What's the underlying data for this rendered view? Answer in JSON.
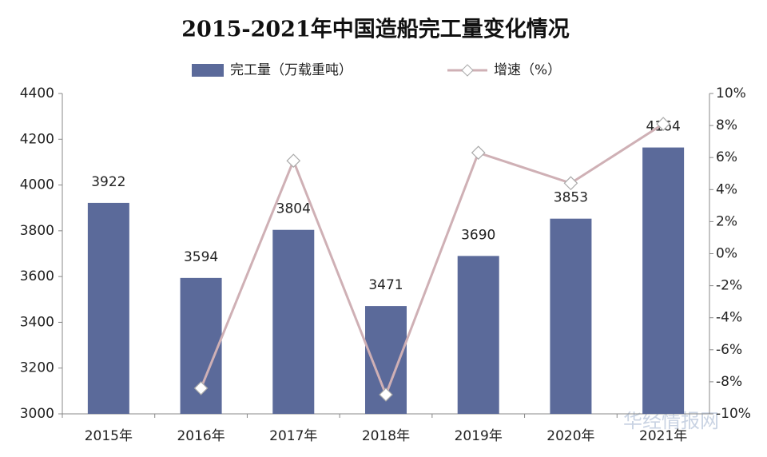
{
  "chart_data": {
    "type": "combo",
    "title": "2015-2021年中国造船完工量变化情况",
    "categories": [
      "2015年",
      "2016年",
      "2017年",
      "2018年",
      "2019年",
      "2020年",
      "2021年"
    ],
    "series": [
      {
        "name": "完工量（万载重吨）",
        "type": "bar",
        "color": "#5b6a9a",
        "values": [
          3922,
          3594,
          3804,
          3471,
          3690,
          3853,
          4164
        ]
      },
      {
        "name": "增速（%）",
        "type": "line",
        "axis": "y2",
        "color": "#cfb0b5",
        "values": [
          null,
          -8.4,
          5.8,
          -8.8,
          6.3,
          4.4,
          8.1
        ]
      }
    ],
    "ylim": [
      3000,
      4400
    ],
    "yticks": [
      3000,
      3200,
      3400,
      3600,
      3800,
      4000,
      4200,
      4400
    ],
    "y2lim": [
      -10,
      10
    ],
    "y2ticks": [
      {
        "value": -10,
        "label": "-10%"
      },
      {
        "value": -8,
        "label": "-8%"
      },
      {
        "value": -6,
        "label": "-6%"
      },
      {
        "value": -4,
        "label": "-4%"
      },
      {
        "value": -2,
        "label": "-2%"
      },
      {
        "value": 0,
        "label": "0%"
      },
      {
        "value": 2,
        "label": "2%"
      },
      {
        "value": 4,
        "label": "4%"
      },
      {
        "value": 6,
        "label": "6%"
      },
      {
        "value": 8,
        "label": "8%"
      },
      {
        "value": 10,
        "label": "10%"
      }
    ],
    "grid": false,
    "watermark": "华经情报网"
  }
}
